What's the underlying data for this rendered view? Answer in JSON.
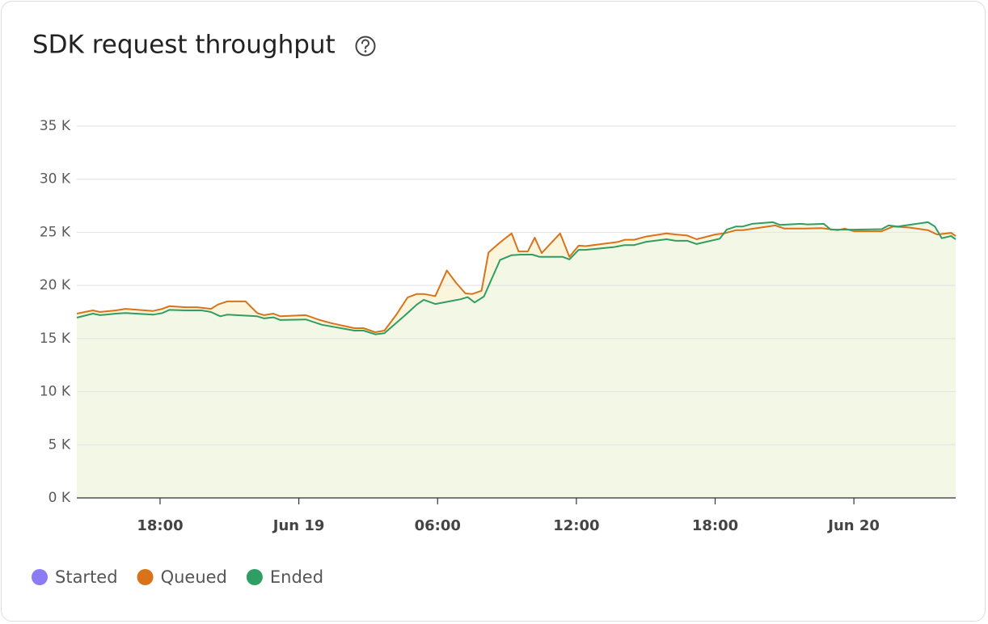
{
  "chart_data": {
    "type": "line",
    "title": "SDK request throughput",
    "xlim": [
      -9.6,
      28.4
    ],
    "xticks": [
      {
        "value": -6,
        "label": "18:00"
      },
      {
        "value": 0,
        "label": "Jun 19"
      },
      {
        "value": 6,
        "label": "06:00"
      },
      {
        "value": 12,
        "label": "12:00"
      },
      {
        "value": 18,
        "label": "18:00"
      },
      {
        "value": 24,
        "label": "Jun 20"
      }
    ],
    "ylim": [
      0,
      35000
    ],
    "yticks": [
      {
        "value": 0,
        "label": "0 K"
      },
      {
        "value": 5000,
        "label": "5 K"
      },
      {
        "value": 10000,
        "label": "10 K"
      },
      {
        "value": 15000,
        "label": "15 K"
      },
      {
        "value": 20000,
        "label": "20 K"
      },
      {
        "value": 25000,
        "label": "25 K"
      },
      {
        "value": 30000,
        "label": "30 K"
      },
      {
        "value": 35000,
        "label": "35 K"
      }
    ],
    "grid": true,
    "series": [
      {
        "name": "Started",
        "color": "#8b7cf6",
        "x": [],
        "values": []
      },
      {
        "name": "Queued",
        "color": "#d9731a",
        "x": [
          -9.6,
          -8.9,
          -8.6,
          -7.9,
          -7.5,
          -6.3,
          -5.9,
          -5.6,
          -4.9,
          -4.4,
          -3.8,
          -3.5,
          -3.1,
          -2.3,
          -1.8,
          -1.5,
          -1.1,
          -0.8,
          0.3,
          0.9,
          1.4,
          2.4,
          2.8,
          3.3,
          3.7,
          4.2,
          4.7,
          5.1,
          5.4,
          5.9,
          6.4,
          6.8,
          7.2,
          7.5,
          7.9,
          8.2,
          8.7,
          9.2,
          9.5,
          9.9,
          10.2,
          10.5,
          11.3,
          11.7,
          12.1,
          12.4,
          13.1,
          13.8,
          14.1,
          14.5,
          15.0,
          15.9,
          16.3,
          16.8,
          17.2,
          18.0,
          18.4,
          18.9,
          19.2,
          19.8,
          20.6,
          21.0,
          21.9,
          22.6,
          23.3,
          23.6,
          24.0,
          25.2,
          25.7,
          26.4,
          27.2,
          27.6,
          28.2,
          28.4
        ],
        "values": [
          17350,
          17650,
          17500,
          17650,
          17800,
          17600,
          17800,
          18050,
          17950,
          17950,
          17800,
          18200,
          18500,
          18500,
          17400,
          17200,
          17350,
          17100,
          17200,
          16750,
          16450,
          15980,
          15980,
          15600,
          15750,
          17200,
          18870,
          19200,
          19200,
          19000,
          21400,
          20250,
          19250,
          19200,
          19500,
          23100,
          24050,
          24900,
          23200,
          23200,
          24500,
          23050,
          24900,
          22700,
          23750,
          23700,
          23900,
          24100,
          24300,
          24300,
          24600,
          24900,
          24800,
          24700,
          24350,
          24800,
          24900,
          25200,
          25200,
          25400,
          25650,
          25350,
          25350,
          25400,
          25200,
          25350,
          25100,
          25100,
          25550,
          25450,
          25200,
          24800,
          24950,
          24650
        ]
      },
      {
        "name": "Ended",
        "color": "#2e9e62",
        "x": [
          -9.6,
          -8.9,
          -8.6,
          -7.9,
          -7.5,
          -6.3,
          -5.9,
          -5.6,
          -4.9,
          -4.2,
          -3.8,
          -3.4,
          -3.1,
          -1.8,
          -1.5,
          -1.1,
          -0.8,
          0.3,
          1.0,
          2.4,
          2.8,
          3.3,
          3.7,
          4.2,
          4.6,
          5.1,
          5.4,
          5.9,
          6.5,
          7.0,
          7.3,
          7.6,
          8.0,
          8.7,
          9.2,
          9.6,
          10.1,
          10.4,
          11.4,
          11.7,
          12.1,
          12.4,
          13.6,
          14.1,
          14.5,
          15.0,
          15.9,
          16.3,
          16.8,
          17.2,
          18.2,
          18.5,
          18.9,
          19.2,
          19.6,
          20.5,
          20.8,
          21.7,
          22.0,
          22.7,
          23.0,
          23.6,
          24.0,
          25.2,
          25.5,
          25.9,
          27.2,
          27.5,
          27.8,
          28.2,
          28.4
        ],
        "values": [
          16970,
          17350,
          17200,
          17350,
          17400,
          17250,
          17400,
          17700,
          17650,
          17650,
          17500,
          17100,
          17250,
          17100,
          16900,
          17000,
          16750,
          16800,
          16300,
          15750,
          15750,
          15400,
          15500,
          16450,
          17200,
          18200,
          18650,
          18250,
          18500,
          18700,
          18900,
          18400,
          18950,
          22400,
          22850,
          22900,
          22900,
          22700,
          22700,
          22450,
          23350,
          23350,
          23600,
          23800,
          23800,
          24100,
          24350,
          24200,
          24200,
          23900,
          24400,
          25250,
          25550,
          25550,
          25800,
          25950,
          25700,
          25800,
          25750,
          25800,
          25250,
          25250,
          25250,
          25300,
          25650,
          25550,
          25950,
          25550,
          24450,
          24650,
          24350
        ]
      }
    ]
  }
}
